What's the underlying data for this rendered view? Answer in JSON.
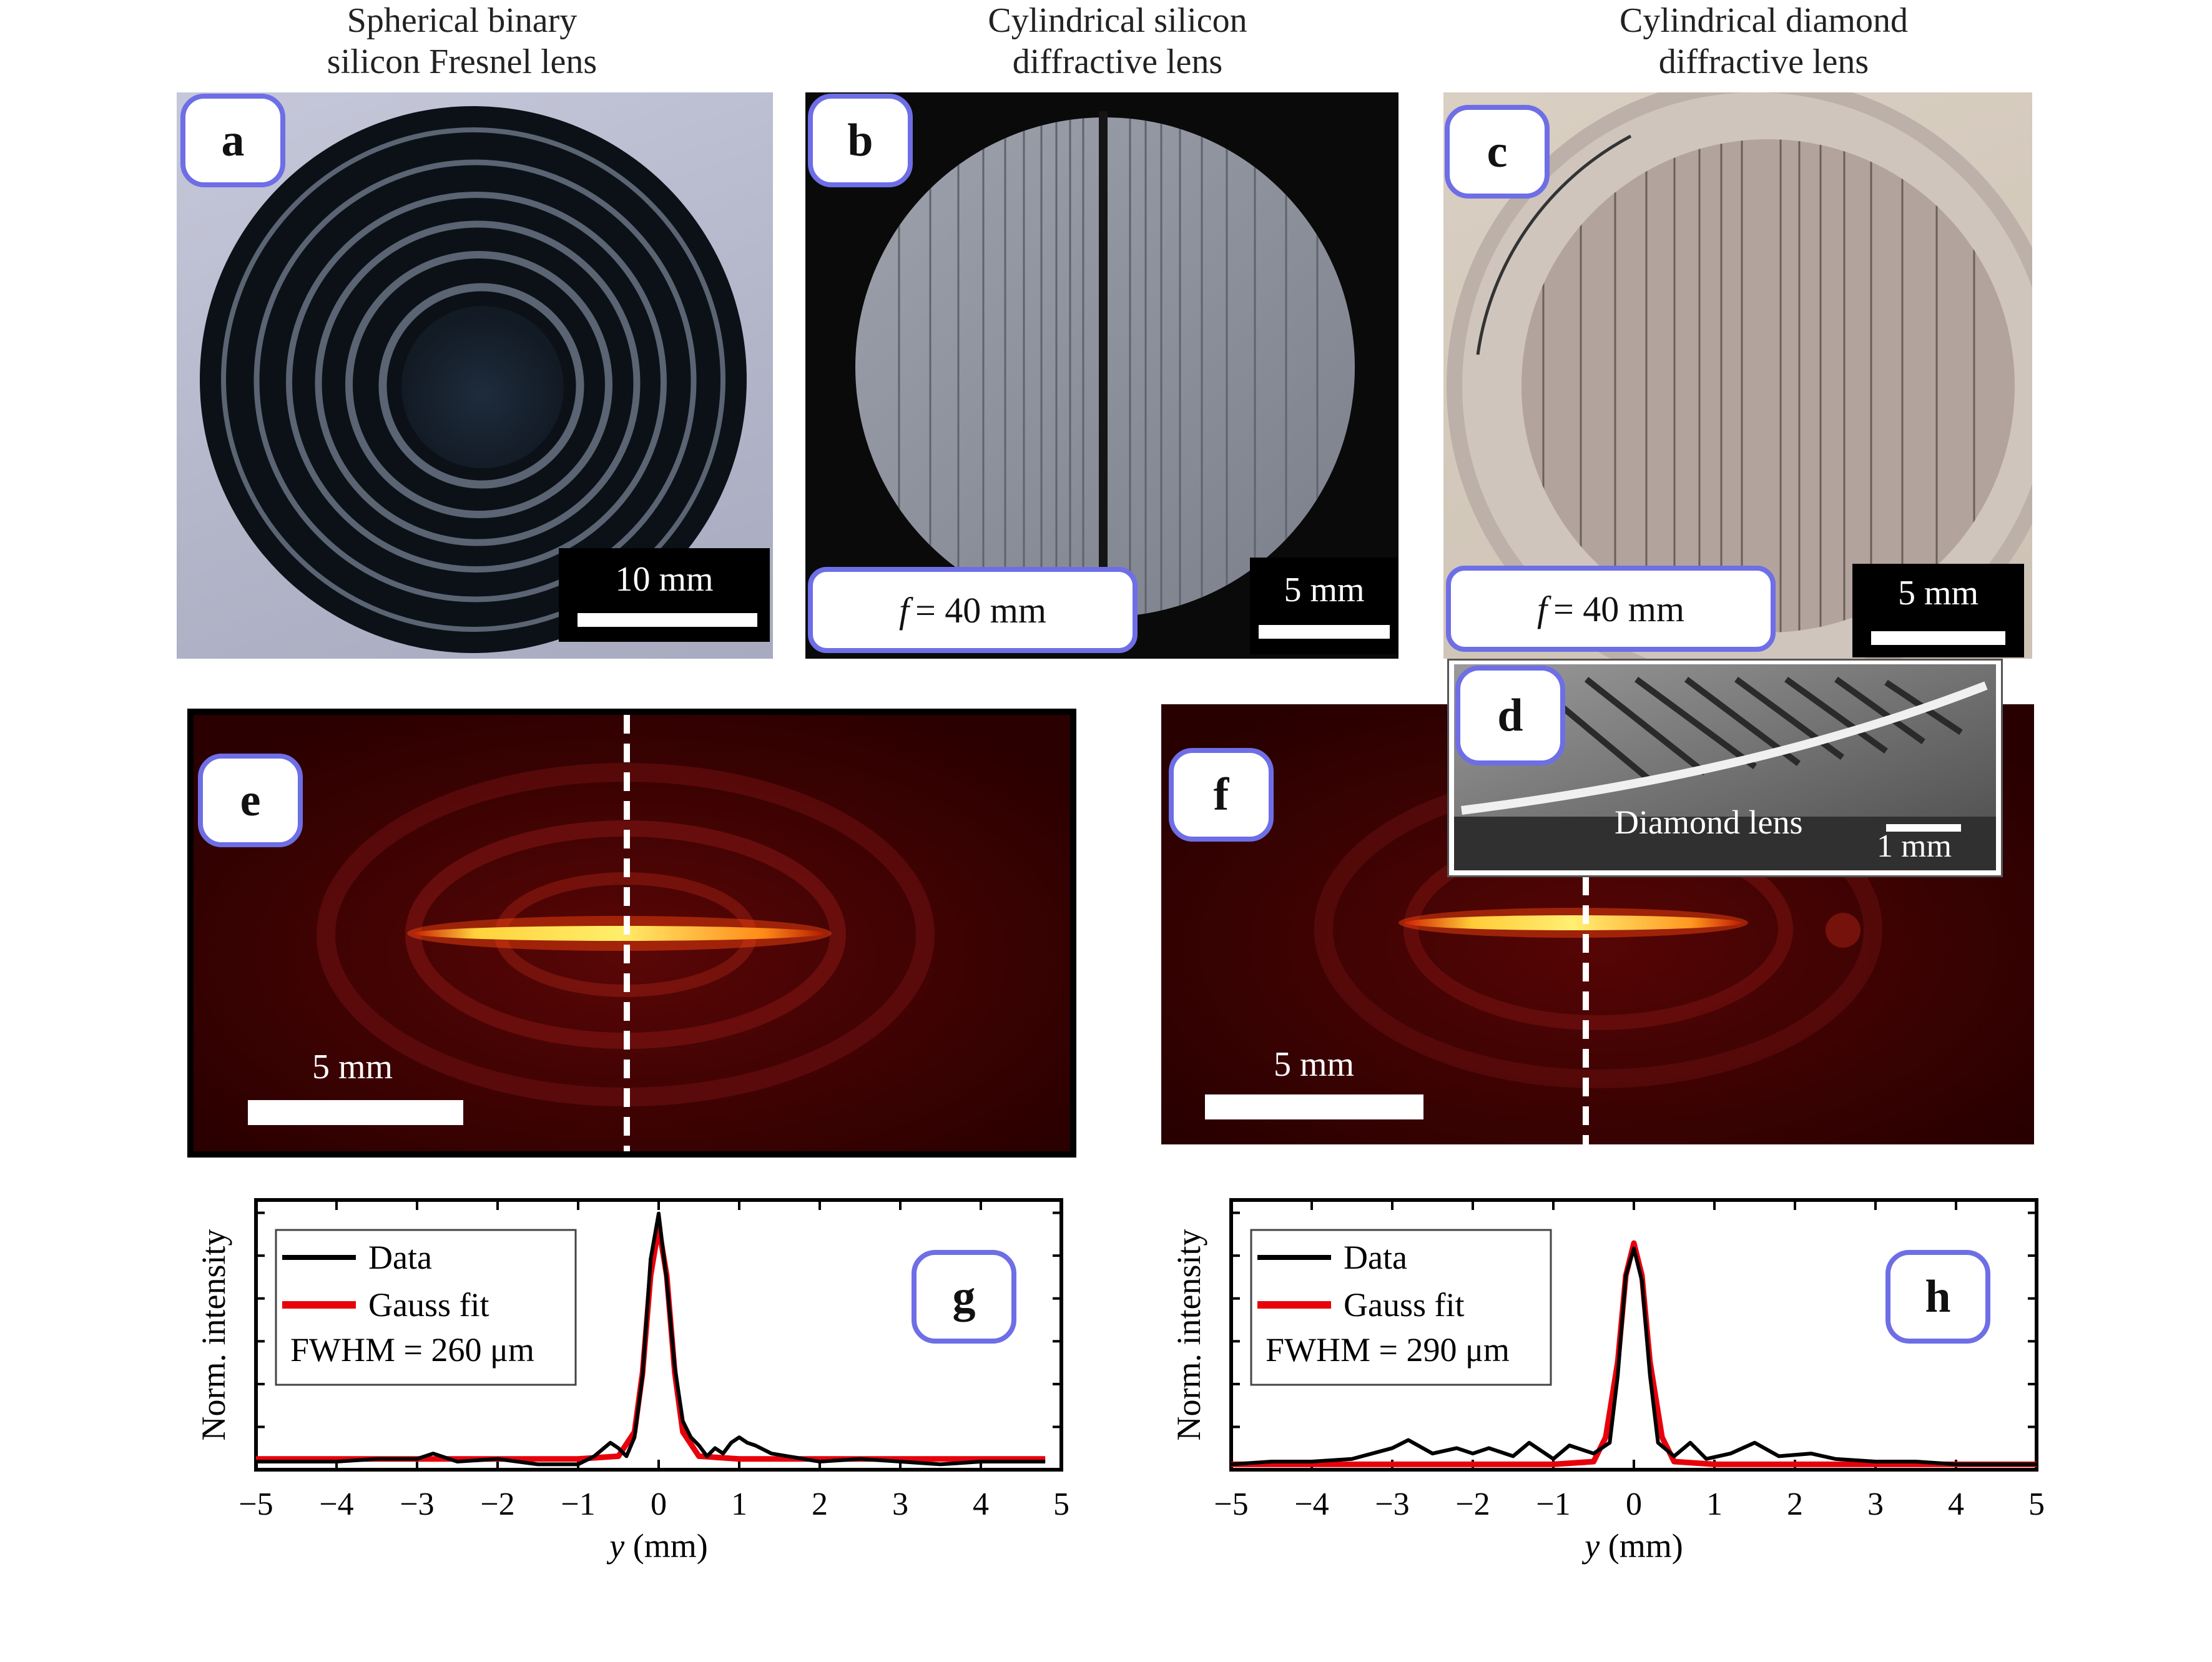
{
  "captions": {
    "a": [
      "Spherical binary",
      "silicon Fresnel lens"
    ],
    "b": [
      "Cylindrical silicon",
      "diffractive lens"
    ],
    "c": [
      "Cylindrical diamond",
      "diffractive lens"
    ]
  },
  "labels": {
    "a": "a",
    "b": "b",
    "c": "c",
    "d": "d",
    "e": "e",
    "f": "f",
    "g": "g",
    "h": "h"
  },
  "focal": {
    "b": "= 40 mm",
    "c": "= 40 mm",
    "symbol": "f"
  },
  "scalebars": {
    "a": "10 mm",
    "b": "5 mm",
    "c": "5 mm",
    "d": "1 mm",
    "e": "5 mm",
    "f": "5 mm"
  },
  "inset_d_text": "Diamond lens",
  "colors": {
    "badge_border": "#6e6ee6",
    "data_line": "#000000",
    "fit_line": "#e8000b"
  },
  "chart_data": [
    {
      "type": "line",
      "panel": "g",
      "xlabel_var": "y",
      "xlabel_unit": " (mm)",
      "ylabel": "Norm. intensity",
      "xlim": [
        -5,
        5
      ],
      "xticks": [
        "−5",
        "−4",
        "−3",
        "−2",
        "−1",
        "0",
        "1",
        "2",
        "3",
        "4",
        "5"
      ],
      "legend": {
        "data": "Data",
        "fit": "Gauss fit",
        "note": "FWHM = 260 μm"
      },
      "series": [
        {
          "name": "Data",
          "x": [
            -5,
            -4,
            -3.5,
            -3,
            -2.8,
            -2.5,
            -2,
            -1.5,
            -1,
            -0.8,
            -0.6,
            -0.5,
            -0.4,
            -0.3,
            -0.2,
            -0.1,
            0,
            0.1,
            0.2,
            0.3,
            0.4,
            0.5,
            0.6,
            0.7,
            0.8,
            0.9,
            1,
            1.1,
            1.2,
            1.4,
            1.6,
            2,
            2.5,
            3,
            3.5,
            4,
            4.5,
            4.8
          ],
          "y": [
            0.03,
            0.03,
            0.04,
            0.04,
            0.06,
            0.03,
            0.04,
            0.02,
            0.02,
            0.05,
            0.1,
            0.08,
            0.05,
            0.12,
            0.35,
            0.78,
            0.95,
            0.7,
            0.38,
            0.18,
            0.12,
            0.09,
            0.05,
            0.08,
            0.06,
            0.1,
            0.12,
            0.1,
            0.09,
            0.06,
            0.05,
            0.03,
            0.04,
            0.03,
            0.02,
            0.03,
            0.03,
            0.03
          ]
        },
        {
          "name": "Gauss fit",
          "x": [
            -5,
            -1,
            -0.5,
            -0.3,
            -0.2,
            -0.1,
            0,
            0.1,
            0.2,
            0.3,
            0.5,
            1,
            4.8
          ],
          "y": [
            0.04,
            0.04,
            0.05,
            0.14,
            0.36,
            0.72,
            0.9,
            0.72,
            0.36,
            0.14,
            0.05,
            0.04,
            0.04
          ]
        }
      ]
    },
    {
      "type": "line",
      "panel": "h",
      "xlabel_var": "y",
      "xlabel_unit": " (mm)",
      "ylabel": "Norm. intensity",
      "xlim": [
        -5,
        5
      ],
      "xticks": [
        "−5",
        "−4",
        "−3",
        "−2",
        "−1",
        "0",
        "1",
        "2",
        "3",
        "4",
        "5"
      ],
      "legend": {
        "data": "Data",
        "fit": "Gauss fit",
        "note": "FWHM = 290 μm"
      },
      "series": [
        {
          "name": "Data",
          "x": [
            -5,
            -4.5,
            -4,
            -3.5,
            -3,
            -2.8,
            -2.5,
            -2.2,
            -2,
            -1.8,
            -1.5,
            -1.3,
            -1,
            -0.8,
            -0.5,
            -0.3,
            -0.2,
            -0.1,
            0,
            0.1,
            0.2,
            0.3,
            0.5,
            0.7,
            0.9,
            1.2,
            1.5,
            1.8,
            2.2,
            2.5,
            3,
            3.5,
            4,
            4.5,
            5
          ],
          "y": [
            0.02,
            0.03,
            0.03,
            0.04,
            0.08,
            0.11,
            0.06,
            0.08,
            0.06,
            0.08,
            0.05,
            0.1,
            0.04,
            0.09,
            0.06,
            0.1,
            0.35,
            0.72,
            0.82,
            0.7,
            0.35,
            0.1,
            0.05,
            0.1,
            0.04,
            0.06,
            0.1,
            0.05,
            0.06,
            0.04,
            0.03,
            0.03,
            0.02,
            0.02,
            0.02
          ]
        },
        {
          "name": "Gauss fit",
          "x": [
            -5,
            -1,
            -0.5,
            -0.35,
            -0.2,
            -0.1,
            0,
            0.1,
            0.2,
            0.35,
            0.5,
            1,
            5
          ],
          "y": [
            0.02,
            0.02,
            0.03,
            0.12,
            0.4,
            0.72,
            0.84,
            0.72,
            0.4,
            0.12,
            0.03,
            0.02,
            0.02
          ]
        }
      ]
    }
  ]
}
